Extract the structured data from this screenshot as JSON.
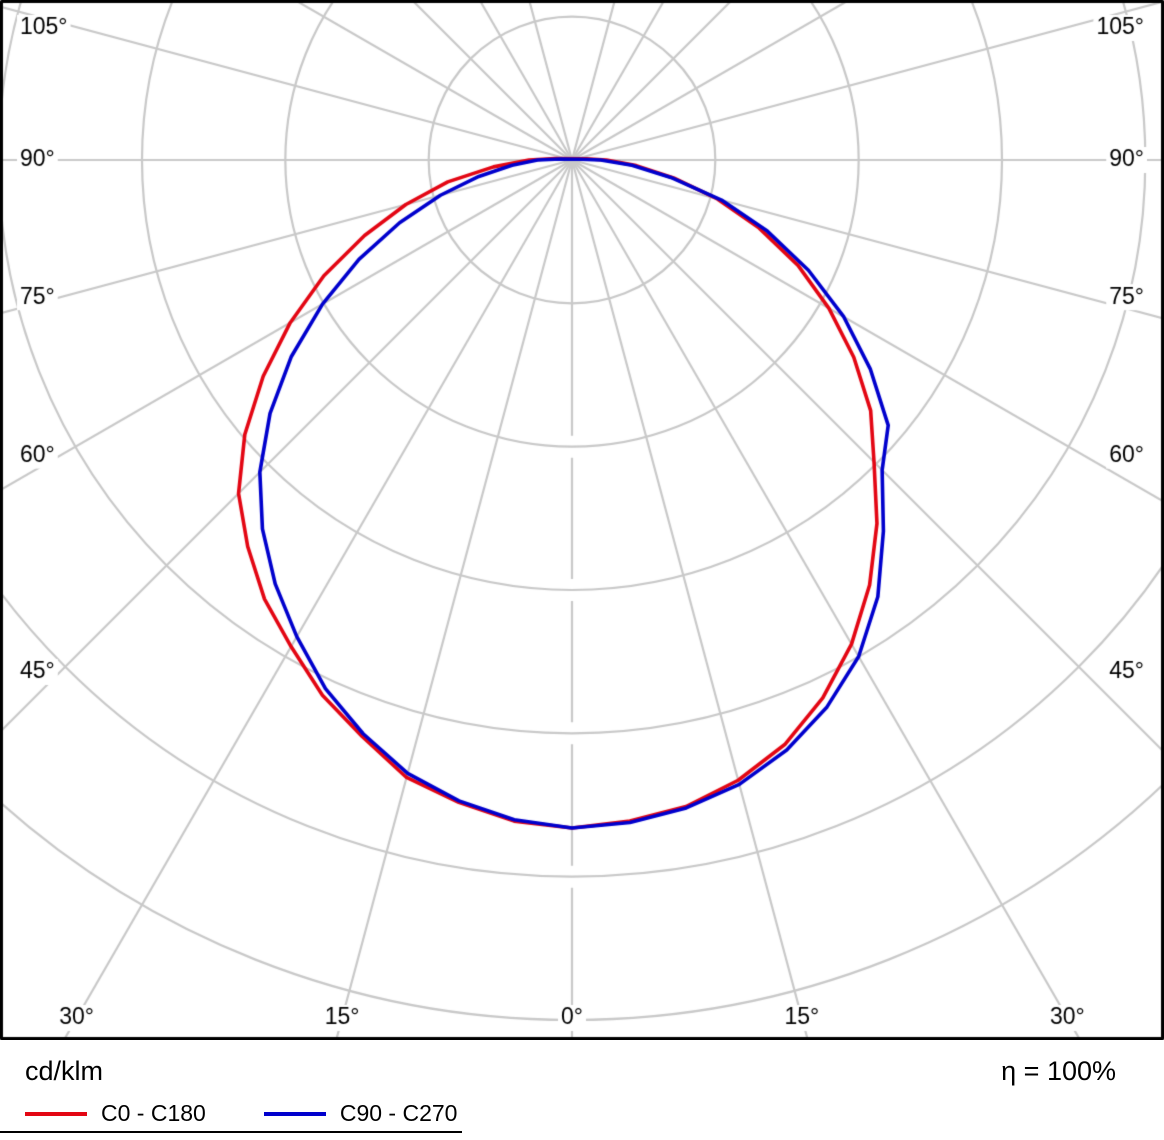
{
  "chart_data": {
    "type": "polar",
    "units_label": "cd/klm",
    "efficiency_label": "η = 100%",
    "colors": {
      "grid": "#c9c9c9",
      "background": "#ffffff",
      "frame": "#000000",
      "text": "#000000"
    },
    "grid": {
      "ring_values_cd_klm": [
        100,
        200,
        300,
        400,
        500,
        600
      ],
      "radial_line_step_deg": 15,
      "side_label_angles_deg": [
        45,
        60,
        75,
        90,
        105
      ],
      "bottom_label_angles_deg": [
        0,
        15,
        30
      ],
      "angle_label_suffix": "°"
    },
    "angles_deg": [
      -95,
      -90,
      -85,
      -80,
      -75,
      -70,
      -65,
      -60,
      -55,
      -50,
      -45,
      -40,
      -35,
      -30,
      -25,
      -20,
      -15,
      -10,
      -5,
      0,
      5,
      10,
      15,
      20,
      25,
      30,
      35,
      40,
      45,
      50,
      55,
      60,
      65,
      70,
      75,
      80,
      85,
      90,
      95
    ],
    "series": [
      {
        "name": "C0 - C180",
        "color": "#e30613",
        "values": [
          12,
          30,
          55,
          88,
          120,
          154,
          191,
          227,
          263,
          298,
          329,
          352,
          374,
          392,
          412,
          428,
          446,
          455,
          463,
          466,
          463,
          458,
          448,
          434,
          414,
          390,
          362,
          331,
          298,
          272,
          240,
          207,
          174,
          139,
          105,
          72,
          45,
          24,
          10
        ]
      },
      {
        "name": "C90 - C270",
        "color": "#0000cd",
        "values": [
          8,
          24,
          42,
          66,
          95,
          128,
          164,
          201,
          239,
          275,
          308,
          336,
          361,
          384,
          407,
          426,
          443,
          454,
          462,
          466,
          464,
          459,
          451,
          438,
          421,
          400,
          372,
          338,
          306,
          288,
          254,
          219,
          182,
          145,
          108,
          70,
          42,
          20,
          6
        ]
      }
    ]
  }
}
